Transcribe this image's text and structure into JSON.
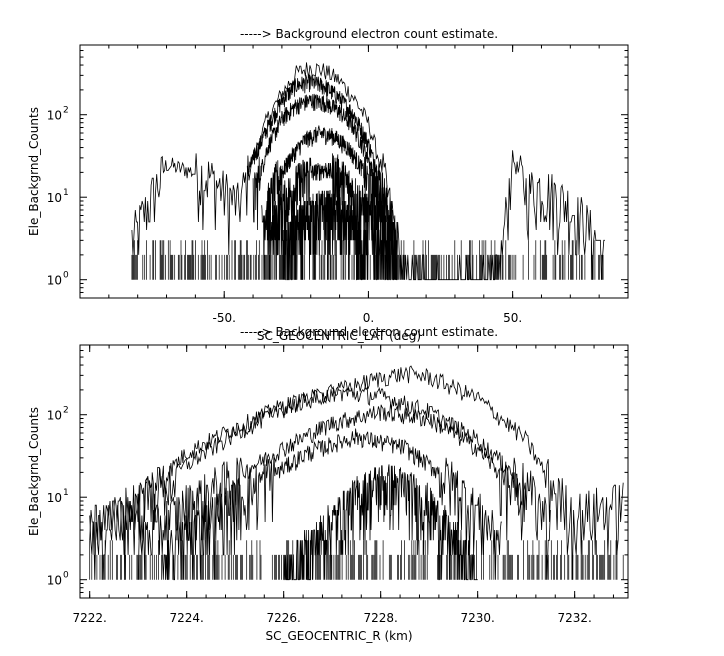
{
  "chart_data": [
    {
      "type": "line",
      "title": "-----> Background electron count estimate.",
      "xlabel": "SC_GEOCENTRIC_LAT (deg)",
      "ylabel": "Ele_Backgrnd_Counts",
      "xlim": [
        -100,
        90
      ],
      "ylim": [
        0.6,
        700
      ],
      "yscale": "log",
      "xticks": [
        -50,
        0,
        50
      ],
      "xtick_labels": [
        "-50.",
        "0.",
        "50."
      ],
      "yticks": [
        1,
        10,
        100
      ],
      "ytick_bases": [
        "10",
        "10",
        "10"
      ],
      "ytick_exponents": [
        "0",
        "1",
        "2"
      ],
      "series": [
        {
          "x": [
            -82,
            -70,
            -55,
            -45,
            -40,
            -35,
            -30,
            -25,
            -20,
            -15,
            -10,
            -5,
            0,
            5,
            10,
            12,
            30,
            45,
            50,
            55,
            60,
            70,
            75,
            82
          ],
          "y": [
            3,
            25,
            18,
            8,
            30,
            90,
            180,
            320,
            380,
            340,
            260,
            160,
            80,
            20,
            3,
            1,
            1,
            1,
            30,
            12,
            14,
            8,
            5,
            2
          ]
        },
        {
          "x": [
            -42,
            -35,
            -30,
            -25,
            -20,
            -15,
            -10,
            -5,
            0,
            5,
            10
          ],
          "y": [
            20,
            70,
            150,
            230,
            250,
            220,
            160,
            100,
            45,
            12,
            3
          ]
        },
        {
          "x": [
            -40,
            -35,
            -30,
            -25,
            -20,
            -15,
            -10,
            -5,
            0,
            5,
            10
          ],
          "y": [
            10,
            40,
            90,
            130,
            150,
            140,
            110,
            70,
            30,
            8,
            2
          ]
        },
        {
          "x": [
            -37,
            -32,
            -27,
            -22,
            -17,
            -12,
            -7,
            -2,
            3,
            8
          ],
          "y": [
            5,
            15,
            30,
            50,
            60,
            55,
            40,
            22,
            8,
            2
          ]
        },
        {
          "x": [
            -35,
            -30,
            -25,
            -20,
            -15,
            -10,
            -5,
            0,
            5
          ],
          "y": [
            3,
            8,
            14,
            20,
            22,
            18,
            11,
            6,
            2
          ]
        },
        {
          "x": [
            -30,
            -25,
            -20,
            -15,
            -10,
            -5,
            0
          ],
          "y": [
            2,
            4,
            6,
            7,
            6,
            4,
            2
          ]
        }
      ]
    },
    {
      "type": "line",
      "title": "-----> Background electron count estimate.",
      "xlabel": "SC_GEOCENTRIC_R (km)",
      "ylabel": "Ele_Backgrnd_Counts",
      "xlim": [
        7221.8,
        7233.1
      ],
      "ylim": [
        0.6,
        700
      ],
      "yscale": "log",
      "xticks": [
        7222,
        7224,
        7226,
        7228,
        7230,
        7232
      ],
      "xtick_labels": [
        "7222.",
        "7224.",
        "7226.",
        "7228.",
        "7230.",
        "7232."
      ],
      "yticks": [
        1,
        10,
        100
      ],
      "ytick_bases": [
        "10",
        "10",
        "10"
      ],
      "ytick_exponents": [
        "0",
        "1",
        "2"
      ],
      "series": [
        {
          "x": [
            7222,
            7223,
            7224,
            7225,
            7226,
            7227,
            7228,
            7228.5,
            7229,
            7230,
            7231,
            7231.5,
            7232,
            7233
          ],
          "y": [
            4,
            8,
            25,
            60,
            120,
            190,
            280,
            320,
            290,
            160,
            50,
            15,
            6,
            9
          ]
        },
        {
          "x": [
            7222,
            7223,
            7224,
            7225,
            7226,
            7227,
            7228,
            7229,
            7230,
            7231,
            7231.5
          ],
          "y": [
            4,
            9,
            35,
            70,
            130,
            190,
            170,
            110,
            50,
            14,
            5
          ]
        },
        {
          "x": [
            7223,
            7224,
            7225,
            7226,
            7227,
            7228,
            7229,
            7230,
            7231
          ],
          "y": [
            3,
            8,
            18,
            40,
            80,
            110,
            90,
            40,
            8
          ]
        },
        {
          "x": [
            7223.5,
            7224.5,
            7225.5,
            7226.5,
            7227.5,
            7228.5,
            7229.5,
            7230.5
          ],
          "y": [
            2,
            6,
            15,
            35,
            55,
            40,
            15,
            3
          ]
        },
        {
          "x": [
            7226,
            7227,
            7227.5,
            7228,
            7228.5,
            7229,
            7229.5,
            7230
          ],
          "y": [
            1,
            5,
            10,
            15,
            13,
            8,
            3,
            1
          ]
        }
      ]
    }
  ]
}
